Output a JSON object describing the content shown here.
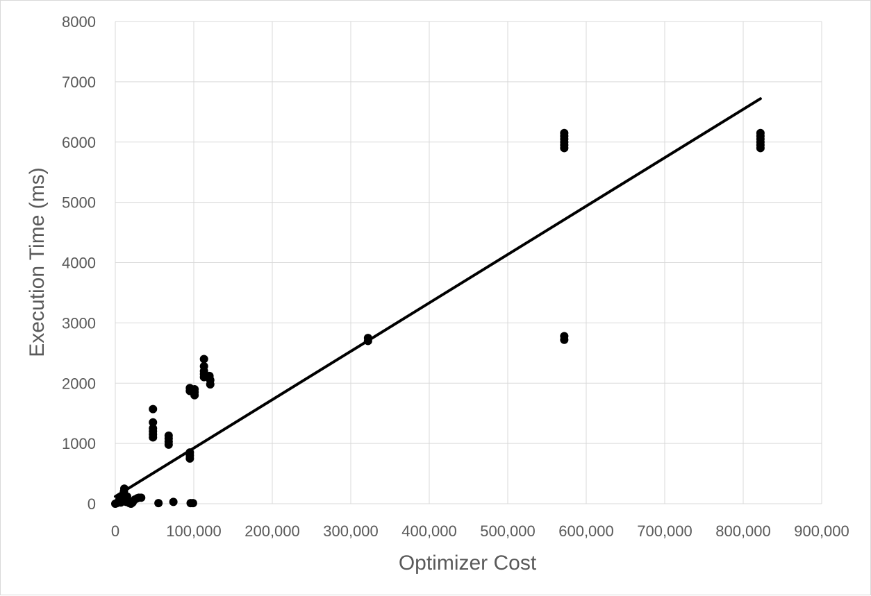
{
  "chart_data": {
    "type": "scatter",
    "title": "",
    "xlabel": "Optimizer Cost",
    "ylabel": "Execution Time (ms)",
    "xlim": [
      0,
      900000
    ],
    "ylim": [
      0,
      8000
    ],
    "x_ticks": [
      0,
      100000,
      200000,
      300000,
      400000,
      500000,
      600000,
      700000,
      800000,
      900000
    ],
    "x_tick_labels": [
      "0",
      "100,000",
      "200,000",
      "300,000",
      "400,000",
      "500,000",
      "600,000",
      "700,000",
      "800,000",
      "900,000"
    ],
    "y_ticks": [
      0,
      1000,
      2000,
      3000,
      4000,
      5000,
      6000,
      7000,
      8000
    ],
    "y_tick_labels": [
      "0",
      "1000",
      "2000",
      "3000",
      "4000",
      "5000",
      "6000",
      "7000",
      "8000"
    ],
    "grid": true,
    "legend": "none",
    "colors": {
      "points": "#000000",
      "trendline": "#000000",
      "grid": "#d9d9d9",
      "text": "#595959"
    },
    "series": [
      {
        "points": [
          [
            0,
            0
          ],
          [
            2000,
            10
          ],
          [
            4000,
            30
          ],
          [
            5000,
            60
          ],
          [
            7000,
            20
          ],
          [
            8000,
            100
          ],
          [
            9000,
            50
          ],
          [
            11000,
            150
          ],
          [
            11000,
            200
          ],
          [
            11500,
            250
          ],
          [
            12000,
            60
          ],
          [
            13000,
            100
          ],
          [
            14000,
            30
          ],
          [
            15000,
            120
          ],
          [
            16000,
            50
          ],
          [
            18000,
            10
          ],
          [
            20000,
            0
          ],
          [
            22000,
            20
          ],
          [
            25000,
            70
          ],
          [
            28000,
            90
          ],
          [
            30000,
            100
          ],
          [
            33000,
            100
          ],
          [
            48000,
            1570
          ],
          [
            48000,
            1350
          ],
          [
            48000,
            1250
          ],
          [
            48000,
            1200
          ],
          [
            48000,
            1150
          ],
          [
            48000,
            1100
          ],
          [
            55000,
            10
          ],
          [
            68000,
            1130
          ],
          [
            68000,
            1080
          ],
          [
            68000,
            1030
          ],
          [
            68000,
            980
          ],
          [
            74000,
            30
          ],
          [
            95000,
            1920
          ],
          [
            95000,
            1870
          ],
          [
            95000,
            850
          ],
          [
            95000,
            800
          ],
          [
            95000,
            750
          ],
          [
            96000,
            10
          ],
          [
            99000,
            10
          ],
          [
            101000,
            1900
          ],
          [
            101000,
            1850
          ],
          [
            101000,
            1800
          ],
          [
            113000,
            2400
          ],
          [
            113000,
            2280
          ],
          [
            113000,
            2200
          ],
          [
            113000,
            2150
          ],
          [
            113000,
            2100
          ],
          [
            120000,
            2120
          ],
          [
            121000,
            2050
          ],
          [
            121000,
            1980
          ],
          [
            322000,
            2750
          ],
          [
            322000,
            2700
          ],
          [
            572000,
            6150
          ],
          [
            572000,
            6100
          ],
          [
            572000,
            6050
          ],
          [
            572000,
            6000
          ],
          [
            572000,
            5950
          ],
          [
            572000,
            5900
          ],
          [
            572000,
            2780
          ],
          [
            572000,
            2720
          ],
          [
            822000,
            6150
          ],
          [
            822000,
            6100
          ],
          [
            822000,
            6050
          ],
          [
            822000,
            6000
          ],
          [
            822000,
            5950
          ],
          [
            822000,
            5900
          ]
        ]
      }
    ],
    "trendline": {
      "type": "linear",
      "x": [
        0,
        822000
      ],
      "y": [
        120,
        6720
      ]
    }
  }
}
